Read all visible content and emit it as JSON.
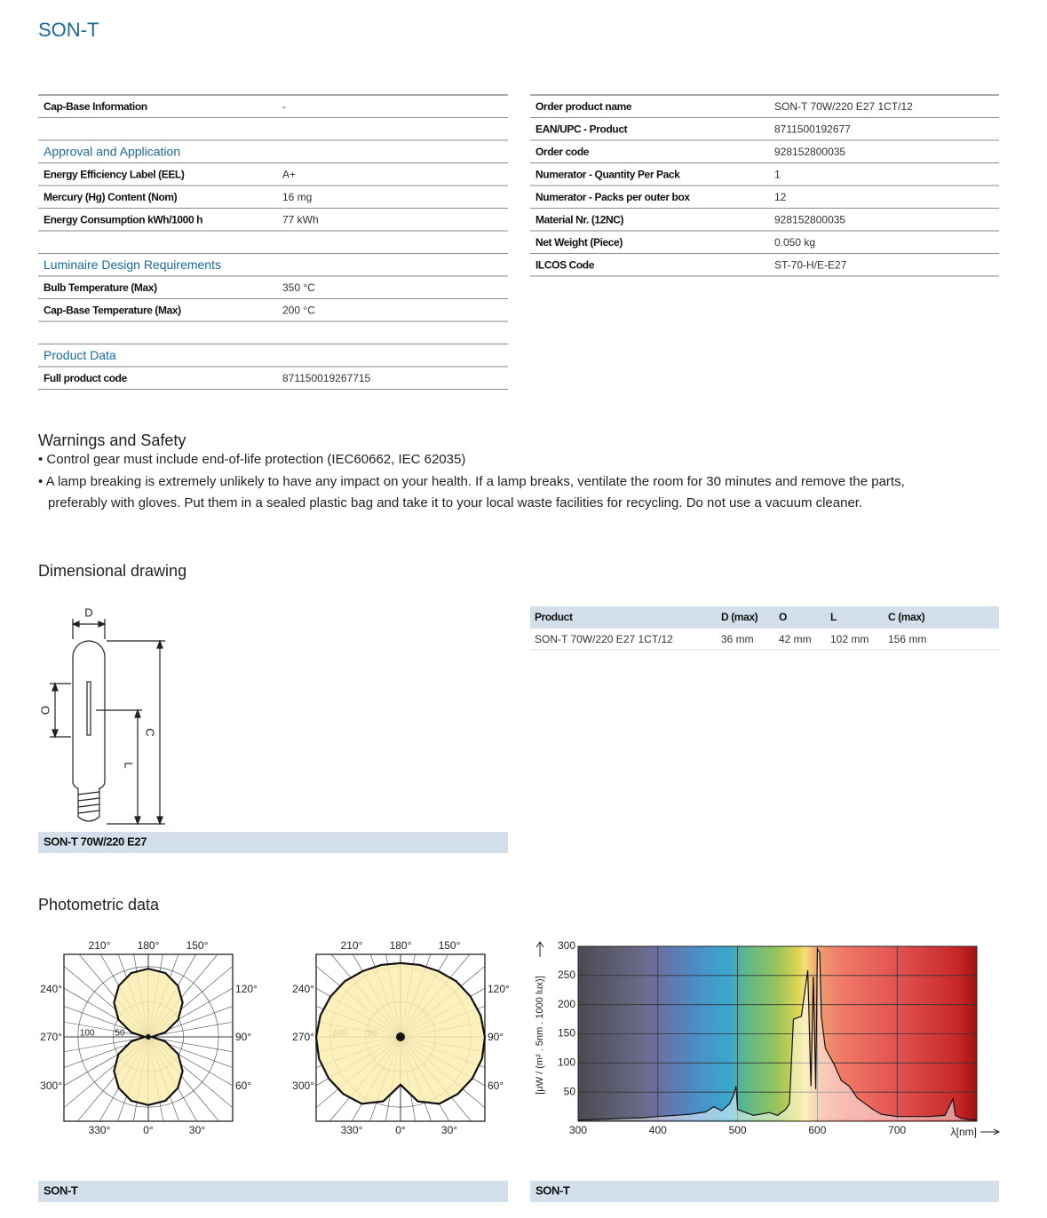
{
  "title": "SON-T",
  "spec_left": [
    {
      "rows": [
        [
          "Cap-Base Information",
          "-"
        ]
      ]
    },
    {
      "heading": "Approval and Application",
      "rows": [
        [
          "Energy Efficiency Label (EEL)",
          "A+"
        ],
        [
          "Mercury (Hg) Content (Nom)",
          "16 mg"
        ],
        [
          "Energy Consumption kWh/1000 h",
          "77 kWh"
        ]
      ]
    },
    {
      "heading": "Luminaire Design Requirements",
      "rows": [
        [
          "Bulb Temperature (Max)",
          "350 °C"
        ],
        [
          "Cap-Base Temperature (Max)",
          "200 °C"
        ]
      ]
    },
    {
      "heading": "Product Data",
      "rows": [
        [
          "Full product code",
          "871150019267715"
        ]
      ]
    }
  ],
  "spec_right": [
    [
      "Order product name",
      "SON-T 70W/220 E27 1CT/12"
    ],
    [
      "EAN/UPC - Product",
      "8711500192677"
    ],
    [
      "Order code",
      "928152800035"
    ],
    [
      "Numerator - Quantity Per Pack",
      "1"
    ],
    [
      "Numerator - Packs per outer box",
      "12"
    ],
    [
      "Material Nr. (12NC)",
      "928152800035"
    ],
    [
      "Net Weight (Piece)",
      "0.050 kg"
    ],
    [
      "ILCOS Code",
      "ST-70-H/E-E27"
    ]
  ],
  "warnings": {
    "title": "Warnings and Safety",
    "items": [
      "Control gear must include end-of-life protection (IEC60662, IEC 62035)",
      "A lamp breaking is extremely unlikely to have any impact on your health. If a lamp breaks, ventilate the room for 30 minutes and remove the parts, preferably with gloves. Put them in a sealed plastic bag and take it to your local waste facilities for recycling. Do not use a vacuum cleaner."
    ]
  },
  "dimensional": {
    "title": "Dimensional drawing",
    "drawing_labels": {
      "D": "D",
      "O": "O",
      "L": "L",
      "C": "C"
    },
    "caption": "SON-T 70W/220 E27",
    "table": {
      "header": [
        "Product",
        "D (max)",
        "O",
        "L",
        "C (max)"
      ],
      "rows": [
        [
          "SON-T 70W/220 E27 1CT/12",
          "36 mm",
          "42 mm",
          "102 mm",
          "156 mm"
        ]
      ]
    }
  },
  "photometric": {
    "title": "Photometric data",
    "angle_labels": {
      "top": [
        "210°",
        "180°",
        "150°"
      ],
      "left": [
        "240°",
        "270°",
        "300°"
      ],
      "right": [
        "120°",
        "90°",
        "60°"
      ],
      "bottom": [
        "330°",
        "0°",
        "30°"
      ]
    },
    "rlim": [
      0,
      120
    ],
    "rticks": [
      100,
      50
    ],
    "polar": [
      {
        "angles": [
          0,
          15,
          30,
          45,
          60,
          75,
          90,
          105,
          120,
          135,
          150,
          165,
          180,
          195,
          210,
          225,
          240,
          255,
          270,
          285,
          300,
          315,
          330,
          345
        ],
        "values": [
          97,
          94,
          84,
          69,
          49,
          25,
          5,
          25,
          49,
          69,
          84,
          94,
          97,
          94,
          84,
          69,
          49,
          25,
          5,
          25,
          49,
          69,
          84,
          94
        ]
      },
      {
        "angles": [
          0,
          15,
          30,
          45,
          60,
          75,
          90,
          105,
          120,
          135,
          150,
          165,
          180,
          195,
          210,
          225,
          240,
          255,
          270,
          285,
          300,
          315,
          330,
          345
        ],
        "values": [
          68,
          95,
          110,
          115,
          118,
          120,
          120,
          118,
          115,
          112,
          108,
          106,
          105,
          106,
          108,
          112,
          115,
          118,
          120,
          120,
          118,
          115,
          110,
          95
        ]
      }
    ],
    "captions": [
      "SON-T",
      "SON-T"
    ]
  },
  "chart_data": {
    "type": "area",
    "x_label": "λ[nm]",
    "y_label": "[μW / (m² . 5nm . 1000 lux)]",
    "x": [
      300,
      320,
      340,
      360,
      380,
      400,
      420,
      440,
      460,
      470,
      480,
      490,
      495,
      498,
      500,
      520,
      540,
      550,
      560,
      565,
      568,
      570,
      580,
      588,
      592,
      595,
      598,
      600,
      603,
      605,
      610,
      620,
      630,
      640,
      650,
      660,
      670,
      680,
      690,
      700,
      720,
      740,
      760,
      770,
      773,
      780,
      790,
      800
    ],
    "values": [
      2,
      3,
      4,
      5,
      6,
      8,
      10,
      12,
      16,
      25,
      18,
      30,
      45,
      60,
      20,
      10,
      15,
      10,
      20,
      30,
      118,
      175,
      180,
      259,
      60,
      248,
      55,
      295,
      290,
      180,
      125,
      100,
      70,
      60,
      40,
      30,
      20,
      12,
      10,
      8,
      8,
      8,
      10,
      38,
      10,
      5,
      3,
      2
    ],
    "xlim": [
      300,
      800
    ],
    "ylim": [
      0,
      300
    ],
    "xticks": [
      300,
      400,
      500,
      600,
      700
    ],
    "yticks": [
      50,
      100,
      150,
      200,
      250,
      300
    ]
  }
}
